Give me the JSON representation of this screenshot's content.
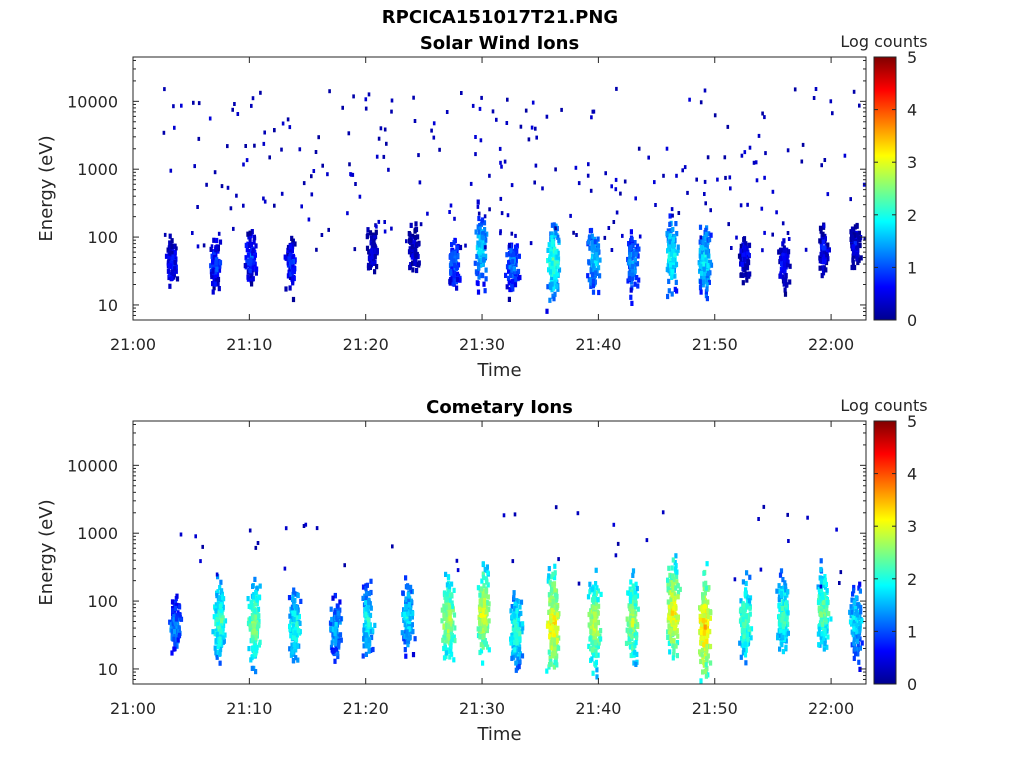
{
  "figure": {
    "title": "RPCICA151017T21.PNG"
  },
  "chart_data": [
    {
      "type": "heatmap",
      "title": "Solar Wind Ions",
      "xlabel": "Time",
      "ylabel": "Energy (eV)",
      "x_tick_labels": [
        "21:00",
        "21:10",
        "21:20",
        "21:30",
        "21:40",
        "21:50",
        "22:00"
      ],
      "x_ticks_minutes": [
        0,
        10,
        20,
        30,
        40,
        50,
        60
      ],
      "xlim_minutes": [
        0,
        63
      ],
      "y_scale": "log",
      "y_tick_labels": [
        "10",
        "100",
        "1000",
        "10000"
      ],
      "y_ticks": [
        10,
        100,
        1000,
        10000
      ],
      "ylim": [
        6,
        45000
      ],
      "colorbar": {
        "label": "Log counts",
        "range": [
          0,
          5
        ],
        "ticks": [
          "0",
          "1",
          "2",
          "3",
          "4",
          "5"
        ]
      },
      "note_data": "Sparse scattered counts; dense clusters near 20-200 eV.",
      "bursts": [
        {
          "t": 3.2,
          "e": 40,
          "i": 0.8
        },
        {
          "t": 7.0,
          "e": 40,
          "i": 1.0
        },
        {
          "t": 10.0,
          "e": 50,
          "i": 1.0
        },
        {
          "t": 13.5,
          "e": 40,
          "i": 0.9
        },
        {
          "t": 20.5,
          "e": 60,
          "i": 0.6
        },
        {
          "t": 24.0,
          "e": 60,
          "i": 0.6
        },
        {
          "t": 27.5,
          "e": 40,
          "i": 1.2
        },
        {
          "t": 29.8,
          "e": 70,
          "i": 1.8
        },
        {
          "t": 32.5,
          "e": 40,
          "i": 1.3
        },
        {
          "t": 36.0,
          "e": 45,
          "i": 2.2
        },
        {
          "t": 39.5,
          "e": 45,
          "i": 1.7
        },
        {
          "t": 42.8,
          "e": 40,
          "i": 1.4
        },
        {
          "t": 46.2,
          "e": 55,
          "i": 2.0
        },
        {
          "t": 49.0,
          "e": 45,
          "i": 1.9
        },
        {
          "t": 52.5,
          "e": 50,
          "i": 0.7
        },
        {
          "t": 55.8,
          "e": 40,
          "i": 0.7
        },
        {
          "t": 59.2,
          "e": 60,
          "i": 0.7
        },
        {
          "t": 62.0,
          "e": 80,
          "i": 0.6
        }
      ]
    },
    {
      "type": "heatmap",
      "title": "Cometary Ions",
      "xlabel": "Time",
      "ylabel": "Energy (eV)",
      "x_tick_labels": [
        "21:00",
        "21:10",
        "21:20",
        "21:30",
        "21:40",
        "21:50",
        "22:00"
      ],
      "x_ticks_minutes": [
        0,
        10,
        20,
        30,
        40,
        50,
        60
      ],
      "xlim_minutes": [
        0,
        63
      ],
      "y_scale": "log",
      "y_tick_labels": [
        "10",
        "100",
        "1000",
        "10000"
      ],
      "y_ticks": [
        10,
        100,
        1000,
        10000
      ],
      "ylim": [
        6,
        45000
      ],
      "colorbar": {
        "label": "Log counts",
        "range": [
          0,
          5
        ],
        "ticks": [
          "0",
          "1",
          "2",
          "3",
          "4",
          "5"
        ]
      },
      "note_data": "Periodic bursts of cometary ions, peak ~3-3.5 log counts near 40-60 eV.",
      "bursts": [
        {
          "t": 3.5,
          "e": 40,
          "i": 1.4
        },
        {
          "t": 7.3,
          "e": 50,
          "i": 2.3
        },
        {
          "t": 10.3,
          "e": 45,
          "i": 2.6
        },
        {
          "t": 13.8,
          "e": 40,
          "i": 2.1
        },
        {
          "t": 17.3,
          "e": 40,
          "i": 1.6
        },
        {
          "t": 20.0,
          "e": 50,
          "i": 2.0
        },
        {
          "t": 23.5,
          "e": 60,
          "i": 1.9
        },
        {
          "t": 27.0,
          "e": 50,
          "i": 2.8
        },
        {
          "t": 30.0,
          "e": 65,
          "i": 3.0
        },
        {
          "t": 32.8,
          "e": 35,
          "i": 2.2
        },
        {
          "t": 36.0,
          "e": 45,
          "i": 3.3
        },
        {
          "t": 39.5,
          "e": 45,
          "i": 2.9
        },
        {
          "t": 42.8,
          "e": 50,
          "i": 2.8
        },
        {
          "t": 46.3,
          "e": 70,
          "i": 3.2
        },
        {
          "t": 49.0,
          "e": 40,
          "i": 3.4
        },
        {
          "t": 52.5,
          "e": 50,
          "i": 2.4
        },
        {
          "t": 55.8,
          "e": 60,
          "i": 2.3
        },
        {
          "t": 59.2,
          "e": 70,
          "i": 2.5
        },
        {
          "t": 62.0,
          "e": 50,
          "i": 1.9
        }
      ]
    }
  ]
}
